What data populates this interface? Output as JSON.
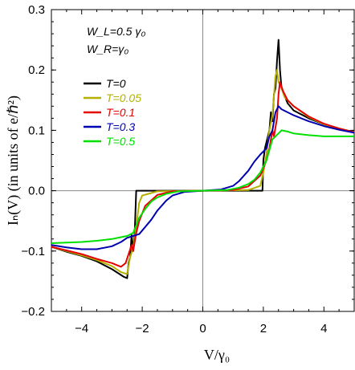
{
  "chart_data": {
    "type": "line",
    "xlabel": "V/γ₀",
    "ylabel": "Iₙ(V) (in units of e/ℏ²)",
    "xlim": [
      -5,
      5
    ],
    "ylim": [
      -0.2,
      0.3
    ],
    "xticks": [
      "-4",
      "-2",
      "0",
      "2",
      "4"
    ],
    "xtick_values": [
      -4,
      -2,
      0,
      2,
      4
    ],
    "yticks": [
      "-0.2",
      "-0.1",
      "0.0",
      "0.1",
      "0.2",
      "0.3"
    ],
    "ytick_values": [
      -0.2,
      -0.1,
      0.0,
      0.1,
      0.2,
      0.3
    ],
    "annotations": [
      "W_L=0.5 γ₀",
      "W_R=γ₀"
    ],
    "grid": false,
    "legend_position": "left-middle",
    "series": [
      {
        "name": "T=0",
        "color": "#000000",
        "points": [
          [
            -5,
            -0.093
          ],
          [
            -4.5,
            -0.101
          ],
          [
            -4,
            -0.108
          ],
          [
            -3.5,
            -0.117
          ],
          [
            -3,
            -0.13
          ],
          [
            -2.6,
            -0.143
          ],
          [
            -2.5,
            -0.145
          ],
          [
            -2.45,
            -0.12
          ],
          [
            -2.4,
            -0.11
          ],
          [
            -2.35,
            -0.073
          ],
          [
            -2.3,
            -0.1
          ],
          [
            -2.25,
            -0.07
          ],
          [
            -2.2,
            0
          ],
          [
            -1.5,
            0
          ],
          [
            0,
            0
          ],
          [
            1.5,
            0
          ],
          [
            1.97,
            0
          ],
          [
            2.0,
            0.05
          ],
          [
            2.05,
            0.07
          ],
          [
            2.2,
            0.1
          ],
          [
            2.25,
            0.13
          ],
          [
            2.3,
            0.115
          ],
          [
            2.35,
            0.16
          ],
          [
            2.4,
            0.17
          ],
          [
            2.45,
            0.215
          ],
          [
            2.5,
            0.25
          ],
          [
            2.55,
            0.2
          ],
          [
            2.6,
            0.17
          ],
          [
            2.8,
            0.145
          ],
          [
            3,
            0.133
          ],
          [
            3.5,
            0.12
          ],
          [
            4,
            0.11
          ],
          [
            4.5,
            0.103
          ],
          [
            5,
            0.097
          ]
        ]
      },
      {
        "name": "T=0.05",
        "color": "#b5b000",
        "points": [
          [
            -5,
            -0.093
          ],
          [
            -4.5,
            -0.1
          ],
          [
            -4,
            -0.107
          ],
          [
            -3.5,
            -0.115
          ],
          [
            -3,
            -0.125
          ],
          [
            -2.7,
            -0.135
          ],
          [
            -2.5,
            -0.138
          ],
          [
            -2.4,
            -0.11
          ],
          [
            -2.3,
            -0.095
          ],
          [
            -2.2,
            -0.06
          ],
          [
            -2.1,
            -0.02
          ],
          [
            -2.0,
            -0.008
          ],
          [
            -1.5,
            -0.001
          ],
          [
            0,
            0
          ],
          [
            1.5,
            0.001
          ],
          [
            1.9,
            0.008
          ],
          [
            2.0,
            0.03
          ],
          [
            2.1,
            0.06
          ],
          [
            2.2,
            0.1
          ],
          [
            2.3,
            0.125
          ],
          [
            2.4,
            0.19
          ],
          [
            2.45,
            0.2
          ],
          [
            2.5,
            0.18
          ],
          [
            2.6,
            0.17
          ],
          [
            2.7,
            0.155
          ],
          [
            3,
            0.14
          ],
          [
            3.5,
            0.122
          ],
          [
            4,
            0.11
          ],
          [
            4.5,
            0.103
          ],
          [
            5,
            0.097
          ]
        ]
      },
      {
        "name": "T=0.1",
        "color": "#e60000",
        "points": [
          [
            -5,
            -0.093
          ],
          [
            -4.5,
            -0.099
          ],
          [
            -4,
            -0.105
          ],
          [
            -3.5,
            -0.113
          ],
          [
            -3,
            -0.12
          ],
          [
            -2.7,
            -0.126
          ],
          [
            -2.55,
            -0.12
          ],
          [
            -2.45,
            -0.105
          ],
          [
            -2.35,
            -0.09
          ],
          [
            -2.3,
            -0.1
          ],
          [
            -2.2,
            -0.07
          ],
          [
            -2.1,
            -0.05
          ],
          [
            -1.9,
            -0.025
          ],
          [
            -1.5,
            -0.007
          ],
          [
            -1.0,
            -0.001
          ],
          [
            0,
            0
          ],
          [
            1.0,
            0.001
          ],
          [
            1.5,
            0.007
          ],
          [
            1.9,
            0.025
          ],
          [
            2.1,
            0.05
          ],
          [
            2.2,
            0.07
          ],
          [
            2.3,
            0.1
          ],
          [
            2.35,
            0.09
          ],
          [
            2.45,
            0.12
          ],
          [
            2.5,
            0.16
          ],
          [
            2.55,
            0.18
          ],
          [
            2.65,
            0.165
          ],
          [
            2.8,
            0.15
          ],
          [
            3,
            0.14
          ],
          [
            3.5,
            0.123
          ],
          [
            4,
            0.111
          ],
          [
            4.5,
            0.103
          ],
          [
            5,
            0.097
          ]
        ]
      },
      {
        "name": "T=0.3",
        "color": "#0000b0",
        "points": [
          [
            -5,
            -0.09
          ],
          [
            -4.5,
            -0.094
          ],
          [
            -4,
            -0.097
          ],
          [
            -3.5,
            -0.097
          ],
          [
            -3,
            -0.092
          ],
          [
            -2.7,
            -0.085
          ],
          [
            -2.5,
            -0.078
          ],
          [
            -2.3,
            -0.075
          ],
          [
            -2.1,
            -0.072
          ],
          [
            -1.9,
            -0.06
          ],
          [
            -1.7,
            -0.048
          ],
          [
            -1.5,
            -0.033
          ],
          [
            -1.2,
            -0.016
          ],
          [
            -1.0,
            -0.008
          ],
          [
            -0.6,
            -0.002
          ],
          [
            0,
            0
          ],
          [
            0.6,
            0.002
          ],
          [
            1.0,
            0.008
          ],
          [
            1.2,
            0.016
          ],
          [
            1.5,
            0.033
          ],
          [
            1.7,
            0.048
          ],
          [
            1.9,
            0.06
          ],
          [
            2.1,
            0.07
          ],
          [
            2.2,
            0.09
          ],
          [
            2.3,
            0.1
          ],
          [
            2.4,
            0.13
          ],
          [
            2.5,
            0.14
          ],
          [
            2.6,
            0.135
          ],
          [
            3,
            0.125
          ],
          [
            3.5,
            0.115
          ],
          [
            4,
            0.107
          ],
          [
            4.5,
            0.101
          ],
          [
            5,
            0.096
          ]
        ]
      },
      {
        "name": "T=0.5",
        "color": "#00e000",
        "points": [
          [
            -5,
            -0.087
          ],
          [
            -4.5,
            -0.086
          ],
          [
            -4,
            -0.085
          ],
          [
            -3.5,
            -0.083
          ],
          [
            -3,
            -0.08
          ],
          [
            -2.7,
            -0.077
          ],
          [
            -2.5,
            -0.075
          ],
          [
            -2.3,
            -0.07
          ],
          [
            -2.1,
            -0.045
          ],
          [
            -1.9,
            -0.03
          ],
          [
            -1.7,
            -0.018
          ],
          [
            -1.5,
            -0.011
          ],
          [
            -1.2,
            -0.005
          ],
          [
            -0.8,
            -0.001
          ],
          [
            0,
            0
          ],
          [
            0.8,
            0.001
          ],
          [
            1.2,
            0.005
          ],
          [
            1.5,
            0.011
          ],
          [
            1.7,
            0.018
          ],
          [
            1.9,
            0.03
          ],
          [
            2.1,
            0.05
          ],
          [
            2.3,
            0.085
          ],
          [
            2.4,
            0.09
          ],
          [
            2.6,
            0.1
          ],
          [
            2.8,
            0.098
          ],
          [
            3,
            0.095
          ],
          [
            3.5,
            0.092
          ],
          [
            4,
            0.09
          ],
          [
            4.5,
            0.09
          ],
          [
            5,
            0.09
          ]
        ]
      }
    ]
  }
}
